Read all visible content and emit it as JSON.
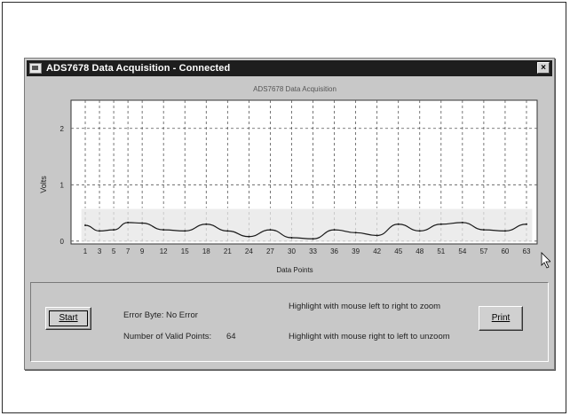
{
  "window": {
    "title": "ADS7678 Data Acquisition - Connected",
    "close_glyph": "×"
  },
  "controls": {
    "start_label": "Start",
    "print_label": "Print",
    "error_byte_label": "Error Byte:",
    "error_byte_value": "No Error",
    "valid_points_label": "Number of Valid Points:",
    "valid_points_value": "64",
    "hint_zoom": "Highlight with mouse left to right to zoom",
    "hint_unzoom": "Highlight with mouse right to left to unzoom"
  },
  "chart_data": {
    "type": "line",
    "title": "ADS7678 Data Acquisition",
    "xlabel": "Data Points",
    "ylabel": "Volts",
    "xlim": [
      0,
      64
    ],
    "ylim": [
      -0.05,
      2.5
    ],
    "grid": true,
    "x_ticks": [
      1,
      3,
      5,
      7,
      9,
      12,
      15,
      18,
      21,
      24,
      27,
      30,
      33,
      36,
      39,
      42,
      45,
      48,
      51,
      54,
      57,
      60,
      63
    ],
    "y_ticks": [
      0,
      1,
      2
    ],
    "series": [
      {
        "x": [
          1,
          3,
          5,
          7,
          9,
          12,
          15,
          18,
          21,
          24,
          27,
          30,
          33,
          36,
          39,
          42,
          45,
          48,
          51,
          54,
          57,
          60,
          63
        ],
        "values": [
          0.28,
          0.18,
          0.2,
          0.33,
          0.32,
          0.2,
          0.18,
          0.3,
          0.18,
          0.08,
          0.2,
          0.06,
          0.04,
          0.2,
          0.15,
          0.1,
          0.3,
          0.18,
          0.3,
          0.33,
          0.2,
          0.18,
          0.3
        ],
        "color": "#1a1a1a"
      }
    ],
    "selection_box": {
      "x_start": 1,
      "x_end": 63,
      "y_low": -0.02,
      "y_high": 0.58
    }
  },
  "colors": {
    "plot_bg": "#ffffff",
    "gridline": "#555555",
    "selection": "#e6e6e6",
    "titlebar": "#1e1e1e"
  },
  "icons": {
    "cursor": "mouse-pointer-icon",
    "app": "app-window-icon"
  }
}
